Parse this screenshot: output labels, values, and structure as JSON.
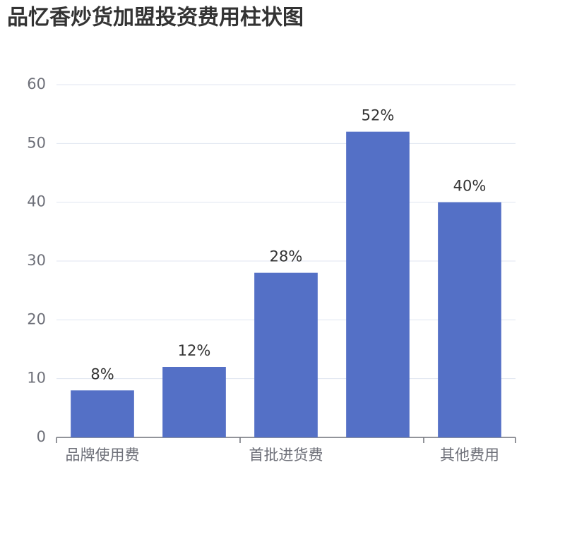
{
  "chart_data": {
    "type": "bar",
    "title": "品忆香炒货加盟投资费用柱状图",
    "categories": [
      "品牌使用费",
      null,
      "首批进货费",
      null,
      "其他费用"
    ],
    "values": [
      8,
      12,
      28,
      52,
      40
    ],
    "value_labels": [
      "8%",
      "12%",
      "28%",
      "52%",
      "40%"
    ],
    "color": "#5470c6",
    "ylim": [
      0,
      60
    ],
    "yticks": [
      0,
      10,
      20,
      30,
      40,
      50,
      60
    ],
    "grid": true
  }
}
